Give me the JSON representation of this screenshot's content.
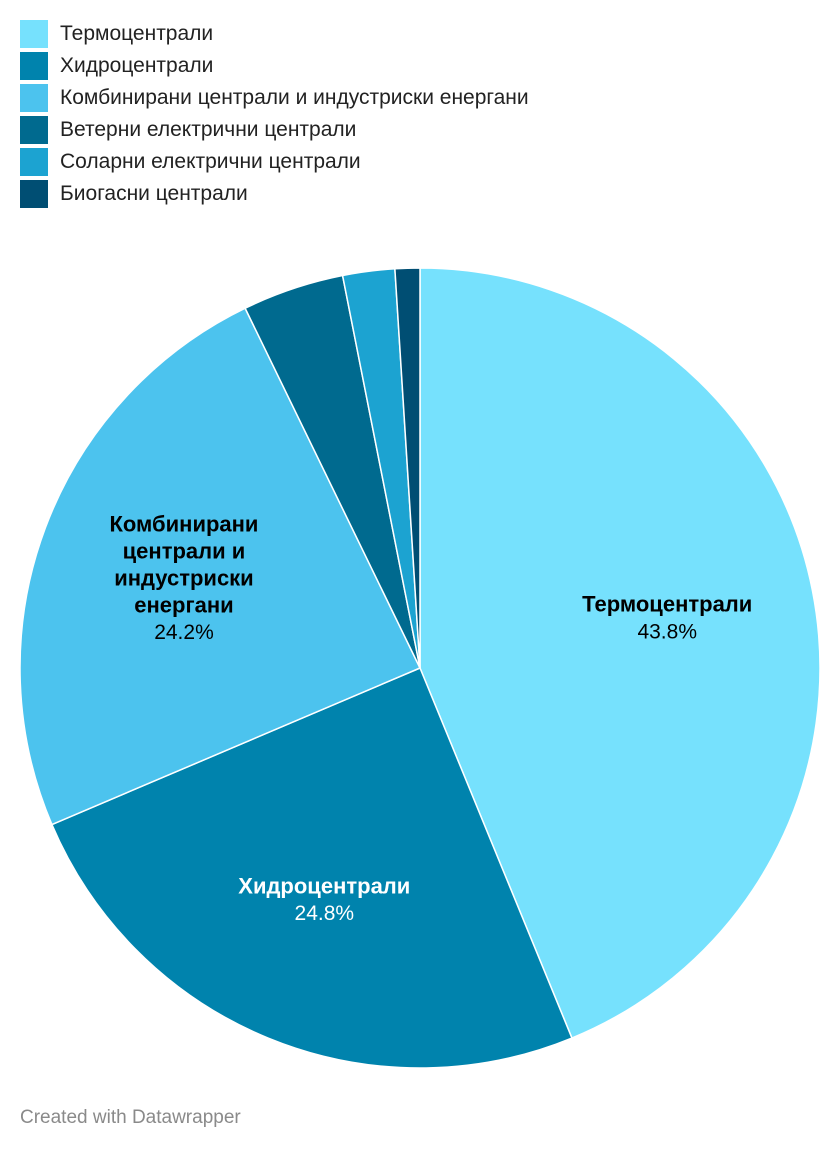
{
  "chart_data": {
    "type": "pie",
    "title": "",
    "categories": [
      "Термоцентрали",
      "Хидроцентрали",
      "Комбинирани централи и индустриски енергани",
      "Ветерни електрични централи",
      "Соларни електрични централи",
      "Биогасни централи"
    ],
    "values": [
      43.8,
      24.8,
      24.2,
      4.1,
      2.1,
      1.0
    ],
    "colors": [
      "#76e1fd",
      "#0083ad",
      "#4cc3ee",
      "#006a8f",
      "#1ca3d1",
      "#004e73"
    ],
    "slice_labels": [
      {
        "lines": [
          "Термоцентрали"
        ],
        "value": "43.8%",
        "color": "#000000"
      },
      {
        "lines": [
          "Хидроцентрали"
        ],
        "value": "24.8%",
        "color": "#ffffff"
      },
      {
        "lines": [
          "Комбинирани",
          "централи и",
          "индустриски",
          "енергани"
        ],
        "value": "24.2%",
        "color": "#000000"
      }
    ],
    "legend_position": "top-left",
    "start_angle_deg": 0,
    "direction": "clockwise"
  },
  "footer": {
    "credit": "Created with Datawrapper"
  }
}
